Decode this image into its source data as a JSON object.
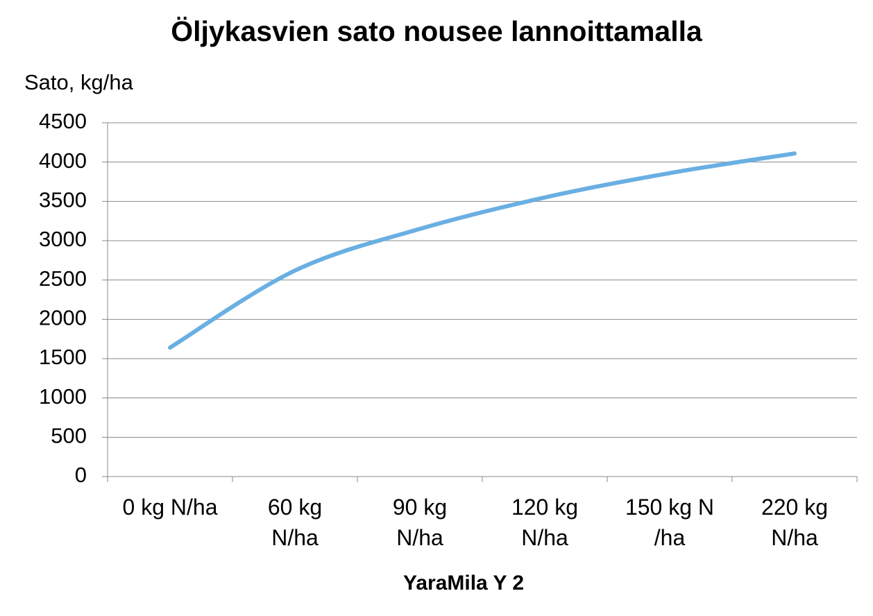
{
  "chart_data": {
    "type": "line",
    "title": "Öljykasvien sato nousee lannoittamalla",
    "y_label": "Sato, kg/ha",
    "x_label": "YaraMila  Y 2",
    "categories": [
      "0 kg N/ha",
      "60 kg\nN/ha",
      "90 kg\nN/ha",
      "120 kg\nN/ha",
      "150 kg N\n/ha",
      "220 kg\nN/ha"
    ],
    "series": [
      {
        "name": "Sato",
        "color": "#6aafe2",
        "values": [
          1640,
          2620,
          3150,
          3550,
          3860,
          4110
        ]
      }
    ],
    "ylim": [
      0,
      4500
    ],
    "yticks": [
      0,
      500,
      1000,
      1500,
      2000,
      2500,
      3000,
      3500,
      4000,
      4500
    ],
    "grid": true,
    "smooth": true
  }
}
